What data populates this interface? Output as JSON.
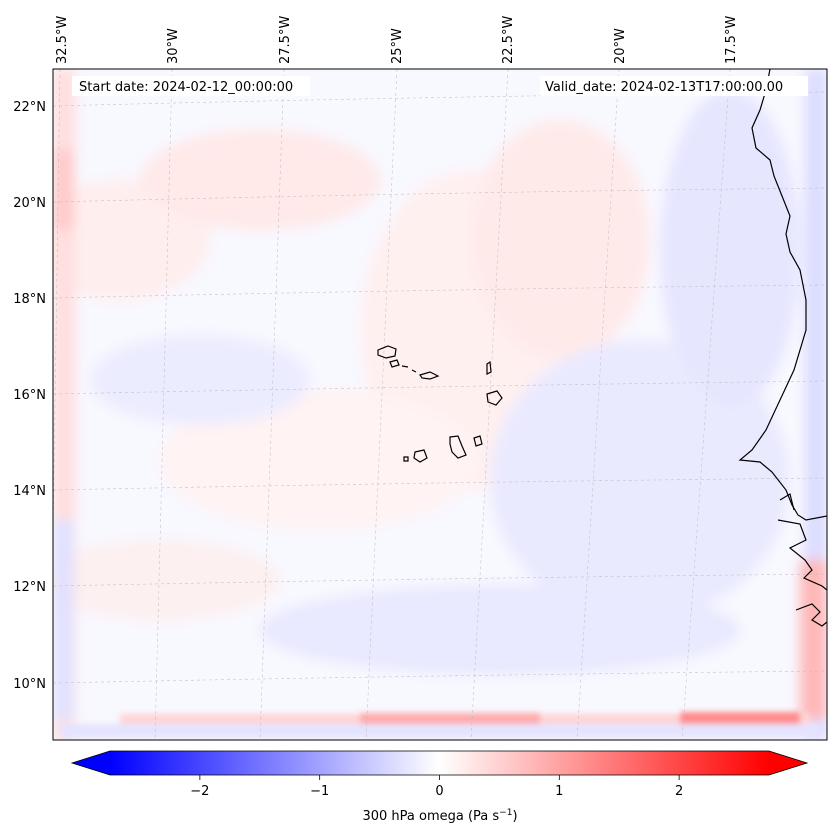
{
  "map": {
    "start_date": "Start date: 2024-02-12_00:00:00",
    "valid_date": "Valid_date: 2024-02-13T17:00:00.00",
    "lon_labels": [
      "32.5°W",
      "30°W",
      "27.5°W",
      "25°W",
      "22.5°W",
      "20°W",
      "17.5°W"
    ],
    "lat_labels": [
      "22°N",
      "20°N",
      "18°N",
      "16°N",
      "14°N",
      "12°N",
      "10°N"
    ]
  },
  "colorbar": {
    "tick_labels": [
      "−2",
      "−1",
      "0",
      "1",
      "2"
    ],
    "ticks": [
      -2,
      -1,
      0,
      1,
      2
    ],
    "range": [
      -2.75,
      2.75
    ],
    "label_main": "300 hPa omega (Pa s",
    "label_sup": "−1",
    "label_end": ")",
    "colors": {
      "negative": "#0000ff",
      "zero": "#ffffff",
      "positive": "#ff0000"
    }
  }
}
